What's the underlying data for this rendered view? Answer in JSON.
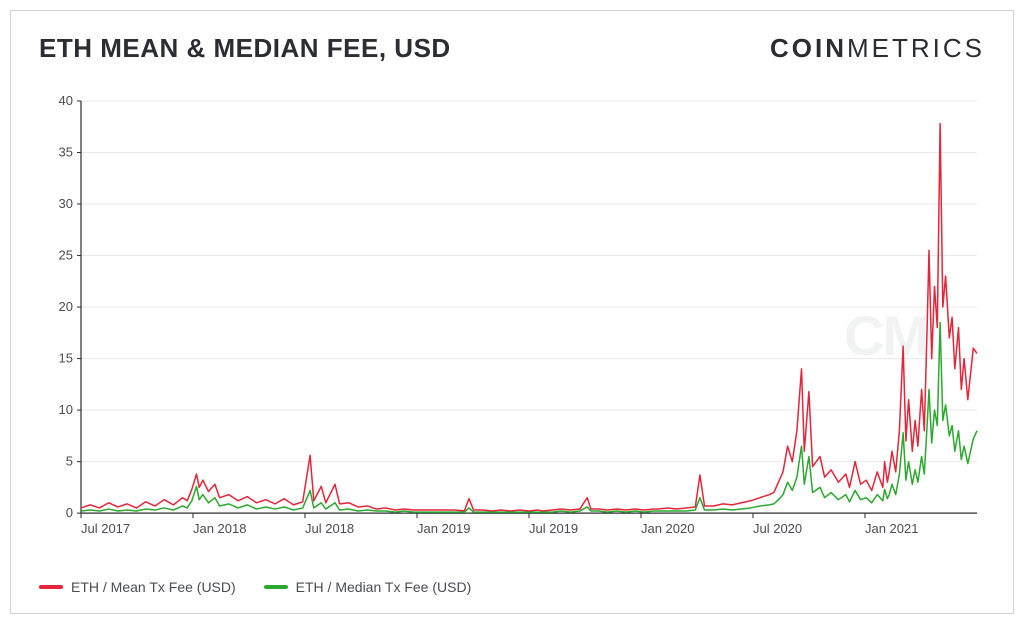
{
  "header": {
    "title": "ETH MEAN & MEDIAN FEE, USD",
    "brand_bold": "COIN",
    "brand_light": "METRICS"
  },
  "chart": {
    "type": "line",
    "background_color": "#ffffff",
    "grid_color": "#e8e9ec",
    "axis_color": "#2b2d33",
    "label_color": "#4a4c52",
    "label_fontsize": 13,
    "title_fontsize": 26,
    "ylim": [
      0,
      40
    ],
    "yticks": [
      0,
      5,
      10,
      15,
      20,
      25,
      30,
      35,
      40
    ],
    "xticks": [
      "Jul 2017",
      "Jan 2018",
      "Jul 2018",
      "Jan 2019",
      "Jul 2019",
      "Jan 2020",
      "Jul 2020",
      "Jan 2021"
    ],
    "xtick_positions": [
      0,
      0.125,
      0.25,
      0.375,
      0.5,
      0.625,
      0.75,
      0.875
    ],
    "x_end": 0.97,
    "watermark_text": "CM",
    "series": [
      {
        "name": "ETH / Mean Tx Fee (USD)",
        "color": "#e4253a",
        "line_width": 1.5,
        "data": [
          [
            0.0,
            0.5
          ],
          [
            0.01,
            0.8
          ],
          [
            0.02,
            0.5
          ],
          [
            0.03,
            1.0
          ],
          [
            0.04,
            0.6
          ],
          [
            0.05,
            0.9
          ],
          [
            0.06,
            0.5
          ],
          [
            0.07,
            1.1
          ],
          [
            0.08,
            0.7
          ],
          [
            0.09,
            1.3
          ],
          [
            0.1,
            0.8
          ],
          [
            0.11,
            1.5
          ],
          [
            0.115,
            1.2
          ],
          [
            0.12,
            2.3
          ],
          [
            0.125,
            3.8
          ],
          [
            0.128,
            2.5
          ],
          [
            0.132,
            3.2
          ],
          [
            0.138,
            2.1
          ],
          [
            0.145,
            2.8
          ],
          [
            0.15,
            1.5
          ],
          [
            0.16,
            1.8
          ],
          [
            0.17,
            1.2
          ],
          [
            0.18,
            1.6
          ],
          [
            0.19,
            1.0
          ],
          [
            0.2,
            1.3
          ],
          [
            0.21,
            0.9
          ],
          [
            0.22,
            1.4
          ],
          [
            0.23,
            0.8
          ],
          [
            0.24,
            1.1
          ],
          [
            0.248,
            5.6
          ],
          [
            0.252,
            1.2
          ],
          [
            0.26,
            2.6
          ],
          [
            0.265,
            1.0
          ],
          [
            0.275,
            2.8
          ],
          [
            0.28,
            0.9
          ],
          [
            0.29,
            1.0
          ],
          [
            0.3,
            0.6
          ],
          [
            0.31,
            0.7
          ],
          [
            0.32,
            0.4
          ],
          [
            0.33,
            0.5
          ],
          [
            0.34,
            0.3
          ],
          [
            0.35,
            0.4
          ],
          [
            0.36,
            0.3
          ],
          [
            0.37,
            0.3
          ],
          [
            0.375,
            0.3
          ],
          [
            0.385,
            0.3
          ],
          [
            0.395,
            0.3
          ],
          [
            0.405,
            0.3
          ],
          [
            0.415,
            0.2
          ],
          [
            0.42,
            1.4
          ],
          [
            0.425,
            0.3
          ],
          [
            0.435,
            0.3
          ],
          [
            0.445,
            0.2
          ],
          [
            0.455,
            0.3
          ],
          [
            0.465,
            0.2
          ],
          [
            0.475,
            0.3
          ],
          [
            0.485,
            0.2
          ],
          [
            0.495,
            0.3
          ],
          [
            0.5,
            0.2
          ],
          [
            0.51,
            0.3
          ],
          [
            0.52,
            0.4
          ],
          [
            0.53,
            0.3
          ],
          [
            0.54,
            0.4
          ],
          [
            0.548,
            1.5
          ],
          [
            0.552,
            0.4
          ],
          [
            0.56,
            0.4
          ],
          [
            0.57,
            0.3
          ],
          [
            0.58,
            0.4
          ],
          [
            0.59,
            0.3
          ],
          [
            0.6,
            0.4
          ],
          [
            0.61,
            0.3
          ],
          [
            0.62,
            0.4
          ],
          [
            0.625,
            0.4
          ],
          [
            0.635,
            0.5
          ],
          [
            0.645,
            0.4
          ],
          [
            0.655,
            0.5
          ],
          [
            0.665,
            0.6
          ],
          [
            0.67,
            3.7
          ],
          [
            0.675,
            0.7
          ],
          [
            0.685,
            0.7
          ],
          [
            0.695,
            0.9
          ],
          [
            0.705,
            0.8
          ],
          [
            0.715,
            1.0
          ],
          [
            0.725,
            1.2
          ],
          [
            0.735,
            1.5
          ],
          [
            0.745,
            1.8
          ],
          [
            0.75,
            2.0
          ],
          [
            0.755,
            3.0
          ],
          [
            0.76,
            4.0
          ],
          [
            0.765,
            6.5
          ],
          [
            0.77,
            5.0
          ],
          [
            0.775,
            8.0
          ],
          [
            0.78,
            14.0
          ],
          [
            0.783,
            6.0
          ],
          [
            0.788,
            11.8
          ],
          [
            0.792,
            4.5
          ],
          [
            0.8,
            5.5
          ],
          [
            0.805,
            3.5
          ],
          [
            0.812,
            4.2
          ],
          [
            0.82,
            3.0
          ],
          [
            0.828,
            3.8
          ],
          [
            0.832,
            2.5
          ],
          [
            0.838,
            5.0
          ],
          [
            0.844,
            2.8
          ],
          [
            0.85,
            3.2
          ],
          [
            0.856,
            2.2
          ],
          [
            0.862,
            4.0
          ],
          [
            0.868,
            2.5
          ],
          [
            0.87,
            5.0
          ],
          [
            0.873,
            3.0
          ],
          [
            0.875,
            4.0
          ],
          [
            0.878,
            6.0
          ],
          [
            0.882,
            4.0
          ],
          [
            0.886,
            8.0
          ],
          [
            0.89,
            16.2
          ],
          [
            0.893,
            7.0
          ],
          [
            0.896,
            11.0
          ],
          [
            0.9,
            6.0
          ],
          [
            0.903,
            9.0
          ],
          [
            0.906,
            6.5
          ],
          [
            0.91,
            12.0
          ],
          [
            0.913,
            8.0
          ],
          [
            0.916,
            18.0
          ],
          [
            0.918,
            25.5
          ],
          [
            0.921,
            15.0
          ],
          [
            0.924,
            22.0
          ],
          [
            0.927,
            18.0
          ],
          [
            0.93,
            37.8
          ],
          [
            0.933,
            20.0
          ],
          [
            0.936,
            23.0
          ],
          [
            0.94,
            17.0
          ],
          [
            0.943,
            19.0
          ],
          [
            0.946,
            14.0
          ],
          [
            0.95,
            18.0
          ],
          [
            0.953,
            12.0
          ],
          [
            0.956,
            15.0
          ],
          [
            0.96,
            11.0
          ],
          [
            0.963,
            13.5
          ],
          [
            0.966,
            16.0
          ],
          [
            0.97,
            15.5
          ]
        ]
      },
      {
        "name": "ETH / Median Tx Fee (USD)",
        "color": "#2ba82e",
        "line_width": 1.5,
        "data": [
          [
            0.0,
            0.2
          ],
          [
            0.01,
            0.3
          ],
          [
            0.02,
            0.2
          ],
          [
            0.03,
            0.4
          ],
          [
            0.04,
            0.2
          ],
          [
            0.05,
            0.3
          ],
          [
            0.06,
            0.2
          ],
          [
            0.07,
            0.4
          ],
          [
            0.08,
            0.3
          ],
          [
            0.09,
            0.5
          ],
          [
            0.1,
            0.3
          ],
          [
            0.11,
            0.7
          ],
          [
            0.115,
            0.5
          ],
          [
            0.12,
            1.2
          ],
          [
            0.125,
            2.6
          ],
          [
            0.128,
            1.3
          ],
          [
            0.132,
            1.8
          ],
          [
            0.138,
            1.0
          ],
          [
            0.145,
            1.5
          ],
          [
            0.15,
            0.7
          ],
          [
            0.16,
            0.9
          ],
          [
            0.17,
            0.5
          ],
          [
            0.18,
            0.8
          ],
          [
            0.19,
            0.4
          ],
          [
            0.2,
            0.6
          ],
          [
            0.21,
            0.4
          ],
          [
            0.22,
            0.6
          ],
          [
            0.23,
            0.3
          ],
          [
            0.24,
            0.5
          ],
          [
            0.248,
            2.2
          ],
          [
            0.252,
            0.5
          ],
          [
            0.26,
            1.0
          ],
          [
            0.265,
            0.4
          ],
          [
            0.275,
            1.0
          ],
          [
            0.28,
            0.3
          ],
          [
            0.29,
            0.4
          ],
          [
            0.3,
            0.2
          ],
          [
            0.31,
            0.3
          ],
          [
            0.32,
            0.2
          ],
          [
            0.33,
            0.2
          ],
          [
            0.34,
            0.1
          ],
          [
            0.35,
            0.2
          ],
          [
            0.36,
            0.1
          ],
          [
            0.37,
            0.1
          ],
          [
            0.375,
            0.1
          ],
          [
            0.385,
            0.1
          ],
          [
            0.395,
            0.1
          ],
          [
            0.405,
            0.1
          ],
          [
            0.415,
            0.1
          ],
          [
            0.42,
            0.5
          ],
          [
            0.425,
            0.1
          ],
          [
            0.435,
            0.1
          ],
          [
            0.445,
            0.1
          ],
          [
            0.455,
            0.1
          ],
          [
            0.465,
            0.1
          ],
          [
            0.475,
            0.1
          ],
          [
            0.485,
            0.1
          ],
          [
            0.495,
            0.1
          ],
          [
            0.5,
            0.1
          ],
          [
            0.51,
            0.1
          ],
          [
            0.52,
            0.2
          ],
          [
            0.53,
            0.1
          ],
          [
            0.54,
            0.2
          ],
          [
            0.548,
            0.6
          ],
          [
            0.552,
            0.2
          ],
          [
            0.56,
            0.2
          ],
          [
            0.57,
            0.1
          ],
          [
            0.58,
            0.2
          ],
          [
            0.59,
            0.1
          ],
          [
            0.6,
            0.2
          ],
          [
            0.61,
            0.1
          ],
          [
            0.62,
            0.2
          ],
          [
            0.625,
            0.2
          ],
          [
            0.635,
            0.2
          ],
          [
            0.645,
            0.2
          ],
          [
            0.655,
            0.2
          ],
          [
            0.665,
            0.3
          ],
          [
            0.67,
            1.5
          ],
          [
            0.675,
            0.3
          ],
          [
            0.685,
            0.3
          ],
          [
            0.695,
            0.4
          ],
          [
            0.705,
            0.3
          ],
          [
            0.715,
            0.4
          ],
          [
            0.725,
            0.5
          ],
          [
            0.735,
            0.7
          ],
          [
            0.745,
            0.8
          ],
          [
            0.75,
            0.9
          ],
          [
            0.755,
            1.3
          ],
          [
            0.76,
            1.8
          ],
          [
            0.765,
            3.0
          ],
          [
            0.77,
            2.2
          ],
          [
            0.775,
            3.5
          ],
          [
            0.78,
            6.5
          ],
          [
            0.783,
            2.8
          ],
          [
            0.788,
            5.5
          ],
          [
            0.792,
            2.0
          ],
          [
            0.8,
            2.5
          ],
          [
            0.805,
            1.5
          ],
          [
            0.812,
            2.0
          ],
          [
            0.82,
            1.3
          ],
          [
            0.828,
            1.8
          ],
          [
            0.832,
            1.1
          ],
          [
            0.838,
            2.2
          ],
          [
            0.844,
            1.3
          ],
          [
            0.85,
            1.5
          ],
          [
            0.856,
            1.0
          ],
          [
            0.862,
            1.8
          ],
          [
            0.868,
            1.2
          ],
          [
            0.87,
            2.3
          ],
          [
            0.873,
            1.4
          ],
          [
            0.875,
            1.8
          ],
          [
            0.878,
            2.8
          ],
          [
            0.882,
            1.8
          ],
          [
            0.886,
            3.8
          ],
          [
            0.89,
            7.8
          ],
          [
            0.893,
            3.2
          ],
          [
            0.896,
            5.0
          ],
          [
            0.9,
            2.8
          ],
          [
            0.903,
            4.2
          ],
          [
            0.906,
            3.0
          ],
          [
            0.91,
            5.5
          ],
          [
            0.913,
            3.8
          ],
          [
            0.916,
            8.5
          ],
          [
            0.918,
            12.0
          ],
          [
            0.921,
            6.8
          ],
          [
            0.924,
            10.0
          ],
          [
            0.927,
            8.5
          ],
          [
            0.93,
            18.5
          ],
          [
            0.933,
            9.0
          ],
          [
            0.936,
            10.5
          ],
          [
            0.94,
            7.5
          ],
          [
            0.943,
            8.5
          ],
          [
            0.946,
            6.0
          ],
          [
            0.95,
            8.0
          ],
          [
            0.953,
            5.2
          ],
          [
            0.956,
            6.5
          ],
          [
            0.96,
            4.8
          ],
          [
            0.963,
            6.0
          ],
          [
            0.966,
            7.2
          ],
          [
            0.97,
            8.0
          ]
        ]
      }
    ]
  },
  "legend": {
    "items": [
      {
        "label": "ETH / Mean Tx Fee (USD)",
        "color": "#e4253a"
      },
      {
        "label": "ETH / Median Tx Fee (USD)",
        "color": "#2ba82e"
      }
    ]
  }
}
